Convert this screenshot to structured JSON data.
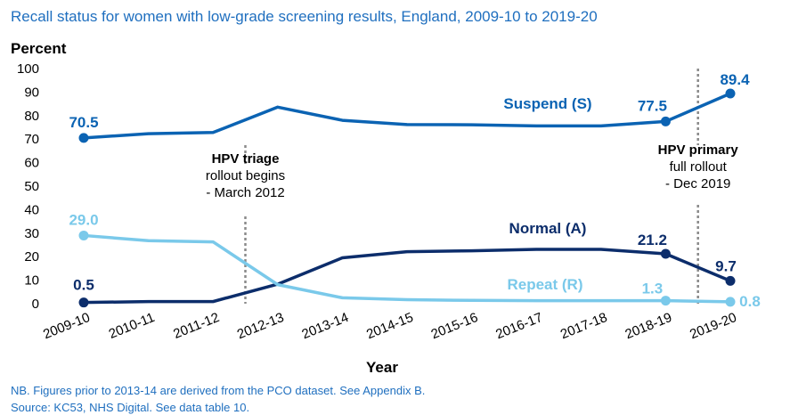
{
  "colors": {
    "suspend": "#0b63b3",
    "normal": "#0c2d6b",
    "repeat": "#7ac9ea",
    "title": "#1f6fbf",
    "annotation_line": "#8a8a8a"
  },
  "chart_data": {
    "type": "line",
    "title": "Recall status for women with low-grade screening results, England, 2009-10 to 2019-20",
    "ylabel": "Percent",
    "xlabel": "Year",
    "ylim": [
      0,
      100
    ],
    "yticks": [
      "0",
      "10",
      "20",
      "30",
      "40",
      "50",
      "60",
      "70",
      "80",
      "90",
      "100"
    ],
    "categories": [
      "2009-10",
      "2010-11",
      "2011-12",
      "2012-13",
      "2013-14",
      "2014-15",
      "2015-16",
      "2016-17",
      "2017-18",
      "2018-19",
      "2019-20"
    ],
    "series": [
      {
        "name": "Suspend (S)",
        "color_key": "suspend",
        "values": [
          70.5,
          72.3,
          72.8,
          83.6,
          78.0,
          76.2,
          76.1,
          75.6,
          75.6,
          77.5,
          89.4
        ]
      },
      {
        "name": "Normal (A)",
        "color_key": "normal",
        "values": [
          0.5,
          0.9,
          0.9,
          8.3,
          19.5,
          22.1,
          22.5,
          23.1,
          23.1,
          21.2,
          9.7
        ]
      },
      {
        "name": "Repeat (R)",
        "color_key": "repeat",
        "values": [
          29.0,
          26.8,
          26.3,
          8.1,
          2.5,
          1.7,
          1.4,
          1.3,
          1.3,
          1.3,
          0.8
        ]
      }
    ],
    "data_labels": [
      {
        "series": 0,
        "index": 0,
        "text": "70.5"
      },
      {
        "series": 0,
        "index": 9,
        "text": "77.5"
      },
      {
        "series": 0,
        "index": 10,
        "text": "89.4"
      },
      {
        "series": 1,
        "index": 0,
        "text": "0.5"
      },
      {
        "series": 1,
        "index": 9,
        "text": "21.2"
      },
      {
        "series": 1,
        "index": 10,
        "text": "9.7"
      },
      {
        "series": 2,
        "index": 0,
        "text": "29.0"
      },
      {
        "series": 2,
        "index": 9,
        "text": "1.3"
      },
      {
        "series": 2,
        "index": 10,
        "text": "0.8"
      }
    ],
    "annotations": [
      {
        "name": "hpv-triage",
        "between": [
          "2011-12",
          "2012-13"
        ],
        "bold": "HPV triage",
        "lines": [
          "rollout begins",
          "- March 2012"
        ]
      },
      {
        "name": "hpv-primary",
        "between": [
          "2018-19",
          "2019-20"
        ],
        "bold": "HPV primary",
        "lines": [
          "full rollout",
          "- Dec 2019"
        ]
      }
    ],
    "grid": false,
    "notes": [
      "NB. Figures prior to 2013-14 are derived from the PCO dataset. See Appendix B.",
      "Source: KC53, NHS Digital. See data table 10."
    ]
  }
}
